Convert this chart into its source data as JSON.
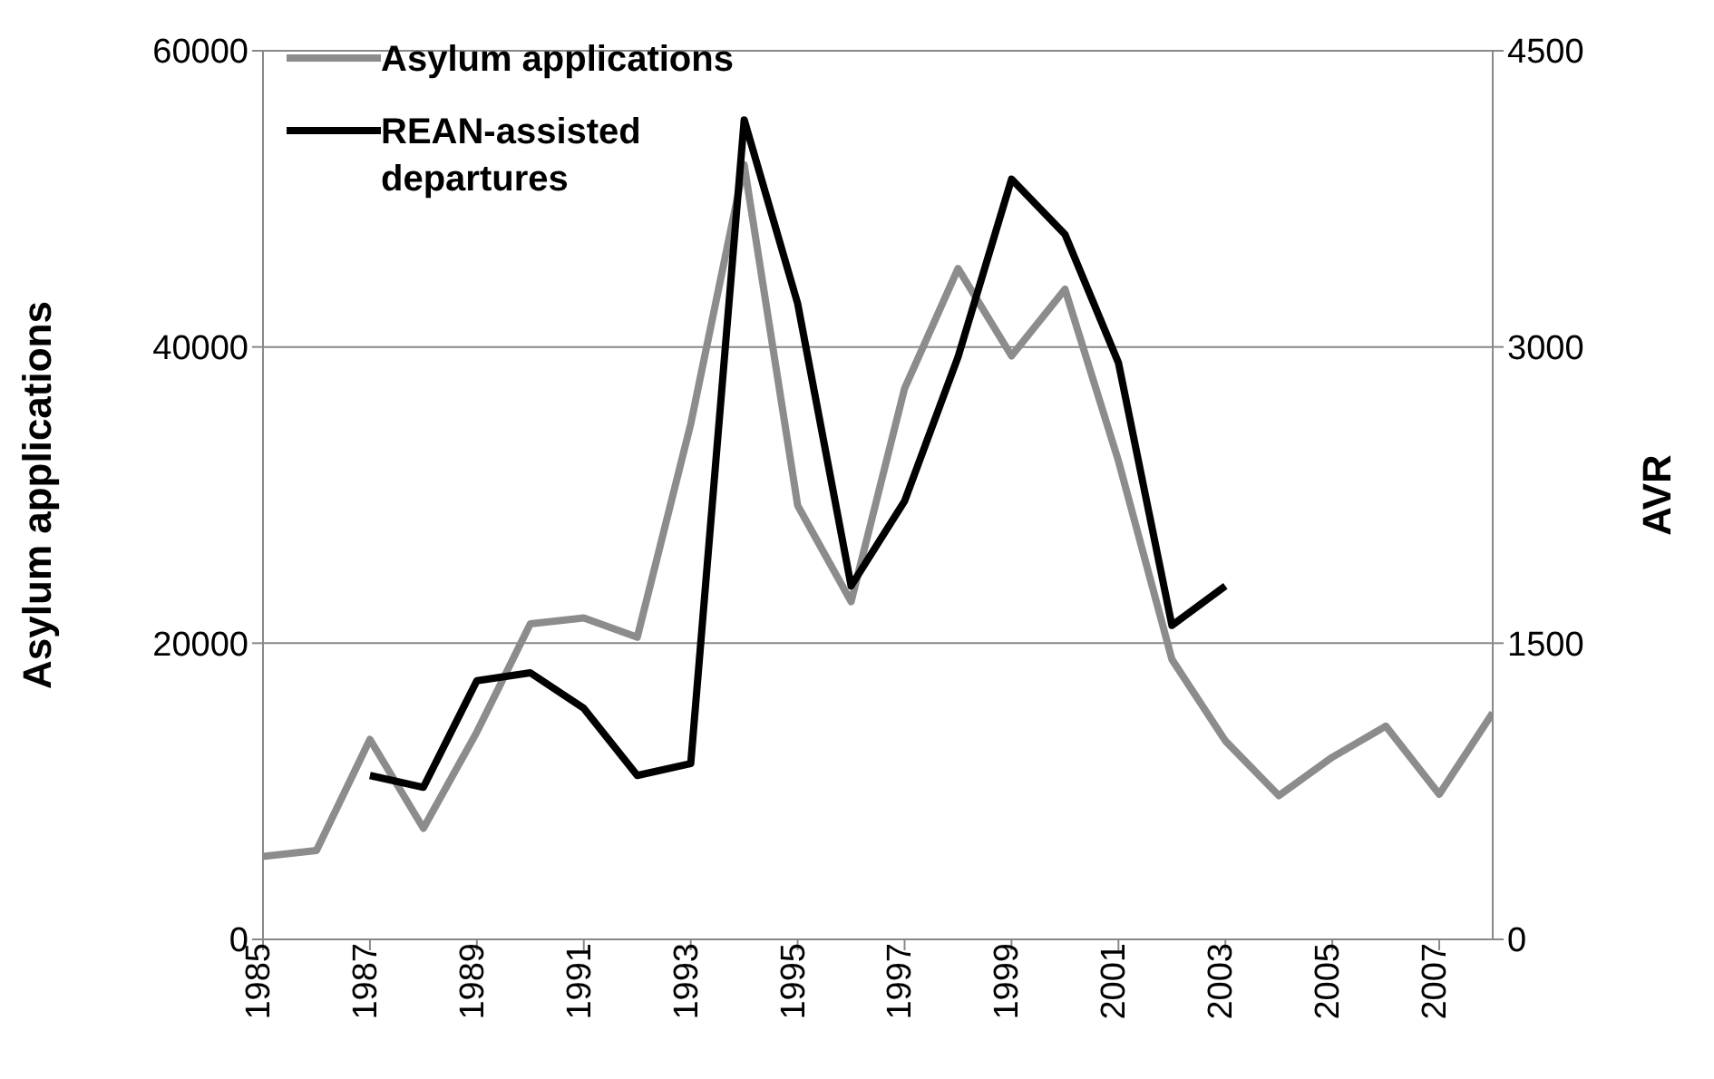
{
  "chart_data": {
    "type": "line",
    "x": [
      1985,
      1986,
      1987,
      1988,
      1989,
      1990,
      1991,
      1992,
      1993,
      1994,
      1995,
      1996,
      1997,
      1998,
      1999,
      2000,
      2001,
      2002,
      2003,
      2004,
      2005,
      2006,
      2007,
      2008
    ],
    "series": [
      {
        "name": "Asylum applications",
        "color": "#8c8c8c",
        "values": [
          5600,
          6000,
          13500,
          7500,
          14000,
          21300,
          21700,
          20400,
          34800,
          52300,
          29300,
          22800,
          37200,
          45300,
          39400,
          43900,
          32300,
          18900,
          13400,
          9700,
          12300,
          14400,
          9800,
          15300
        ]
      },
      {
        "name": "REAN-assisted departures",
        "color": "#000000",
        "axis": "y2",
        "values": [
          null,
          null,
          830,
          770,
          1310,
          1350,
          1170,
          830,
          890,
          4150,
          3220,
          1790,
          2220,
          2950,
          3850,
          3570,
          2920,
          1590,
          1790,
          null,
          null,
          null,
          null,
          null
        ]
      }
    ],
    "ylabel": "Asylum applications",
    "y2label": "AVR",
    "xlim": [
      1985,
      2008
    ],
    "xticks": [
      1985,
      1987,
      1989,
      1991,
      1993,
      1995,
      1997,
      1999,
      2001,
      2003,
      2005,
      2007
    ],
    "ylim": [
      0,
      60000
    ],
    "yticks": [
      0,
      20000,
      40000,
      60000
    ],
    "y2lim": [
      0,
      4500
    ],
    "y2ticks": [
      0,
      1500,
      3000,
      4500
    ],
    "grid": "y",
    "legend": "top left",
    "marker": "none",
    "line_style": "solid"
  }
}
